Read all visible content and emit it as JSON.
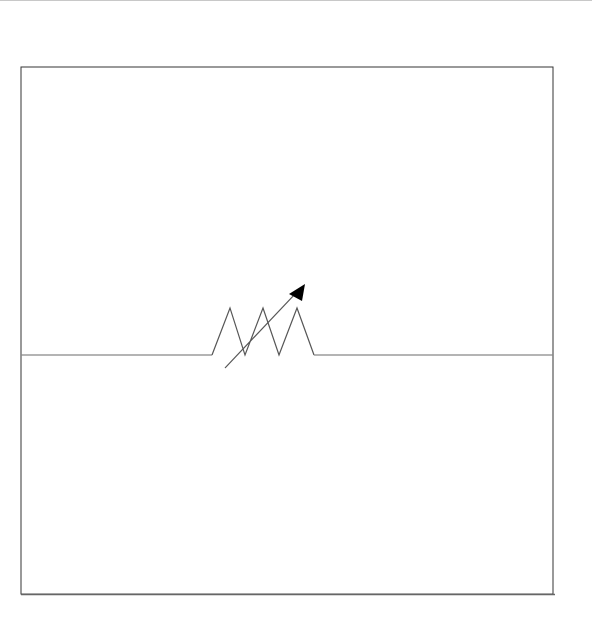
{
  "diagram": {
    "symbol": "variable-resistor",
    "components": [
      "resistor-zigzag",
      "adjustment-arrow",
      "lead-wire-left",
      "lead-wire-right"
    ]
  },
  "colors": {
    "background": "#ffffff",
    "frame_stroke": "#333333",
    "wire_stroke": "#888888",
    "symbol_stroke": "#555555",
    "arrow_fill": "#000000"
  }
}
